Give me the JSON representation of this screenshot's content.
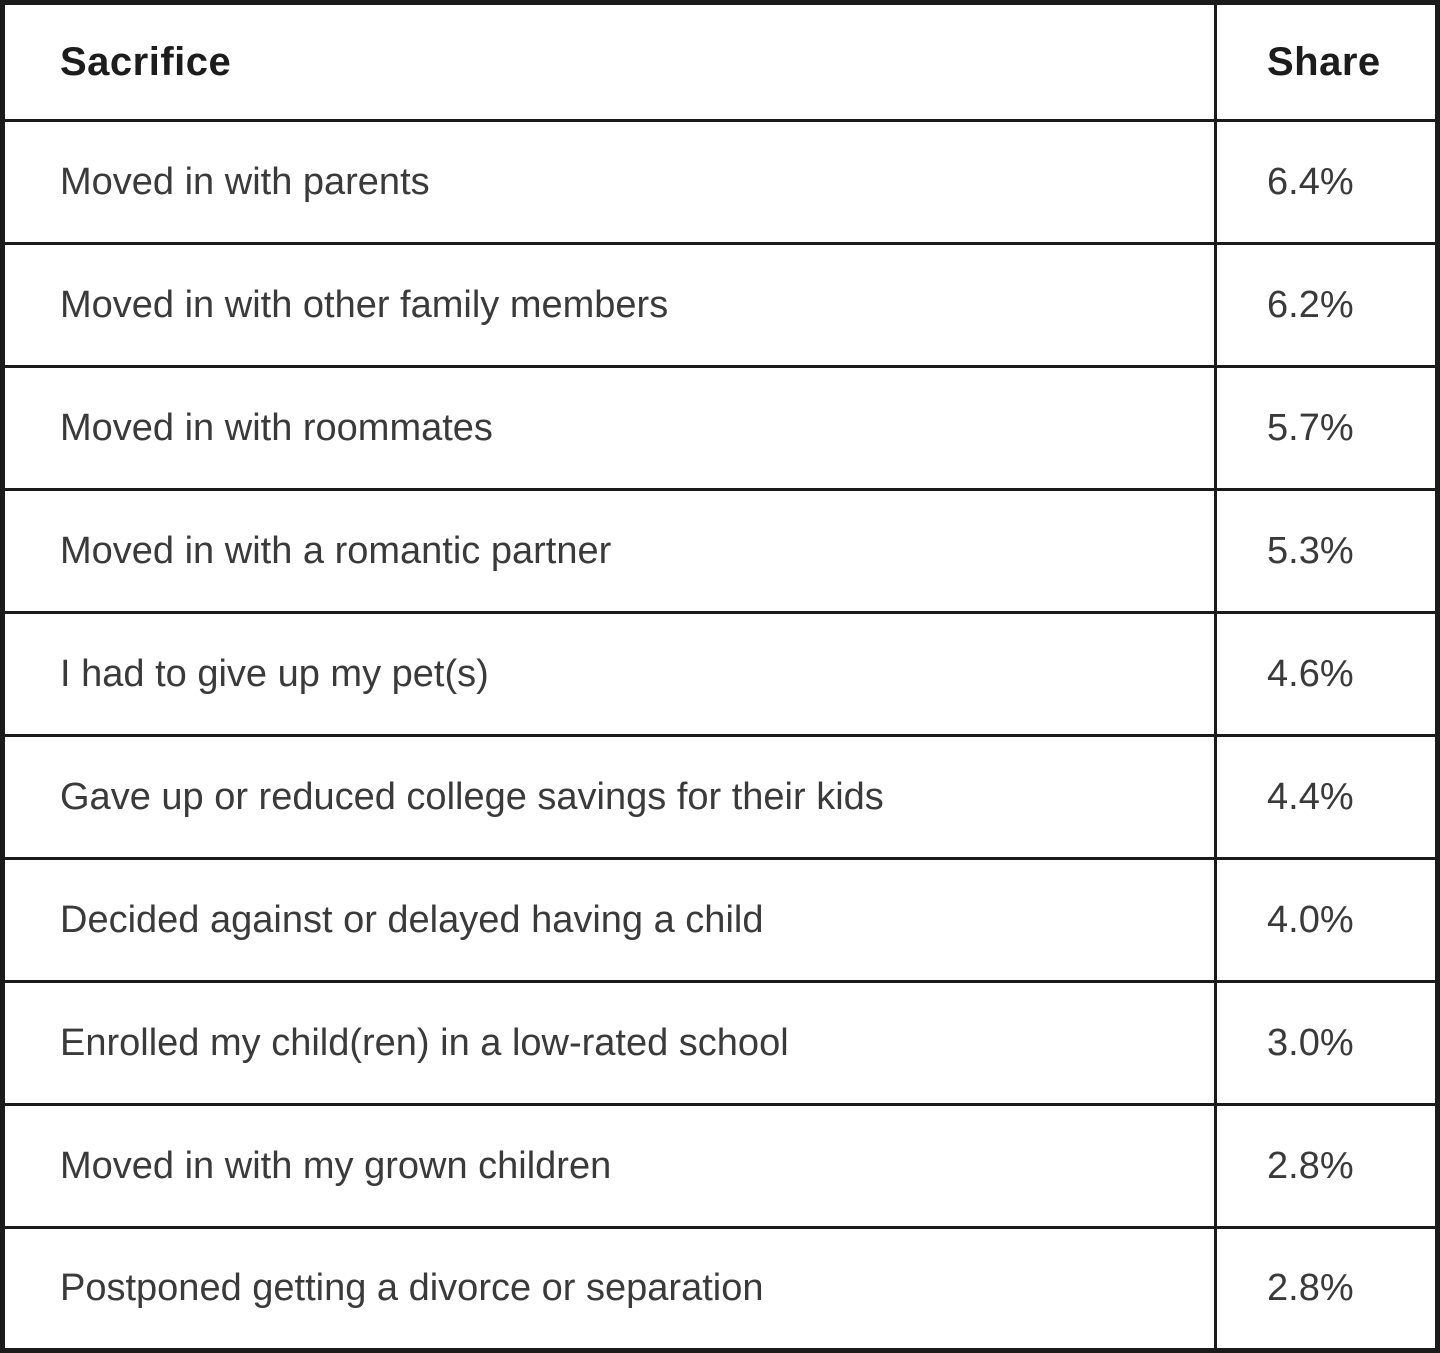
{
  "table": {
    "headers": {
      "sacrifice": "Sacrifice",
      "share": "Share"
    },
    "rows": [
      {
        "label": "Moved in with parents",
        "share": "6.4%"
      },
      {
        "label": "Moved in with other family members",
        "share": "6.2%"
      },
      {
        "label": "Moved in with roommates",
        "share": "5.7%"
      },
      {
        "label": "Moved in with a romantic partner",
        "share": "5.3%"
      },
      {
        "label": "I had to give up my pet(s)",
        "share": "4.6%"
      },
      {
        "label": "Gave up or reduced college savings for their kids",
        "share": "4.4%"
      },
      {
        "label": "Decided against or delayed having a child",
        "share": "4.0%"
      },
      {
        "label": "Enrolled my child(ren) in a low-rated school",
        "share": "3.0%"
      },
      {
        "label": "Moved in with my grown children",
        "share": "2.8%"
      },
      {
        "label": "Postponed getting a divorce or separation",
        "share": "2.8%"
      }
    ]
  },
  "chart_data": {
    "type": "table",
    "title": "",
    "columns": [
      "Sacrifice",
      "Share"
    ],
    "rows": [
      [
        "Moved in with parents",
        "6.4%"
      ],
      [
        "Moved in with other family members",
        "6.2%"
      ],
      [
        "Moved in with roommates",
        "5.7%"
      ],
      [
        "Moved in with a romantic partner",
        "5.3%"
      ],
      [
        "I had to give up my pet(s)",
        "4.6%"
      ],
      [
        "Gave up or reduced college savings for their kids",
        "4.4%"
      ],
      [
        "Decided against or delayed having a child",
        "4.0%"
      ],
      [
        "Enrolled my child(ren) in a low-rated school",
        "3.0%"
      ],
      [
        "Moved in with my grown children",
        "2.8%"
      ],
      [
        "Postponed getting a divorce or separation",
        "2.8%"
      ]
    ],
    "values_numeric": [
      6.4,
      6.2,
      5.7,
      5.3,
      4.6,
      4.4,
      4.0,
      3.0,
      2.8,
      2.8
    ],
    "value_unit": "%",
    "layout": {
      "grid": true,
      "border_color": "#1b1b1b",
      "background": "#ffffff",
      "text_align": "left"
    }
  },
  "colors": {
    "border": "#1b1b1b",
    "header_text": "#1c1c1c",
    "body_text": "#3a3a3a",
    "background": "#ffffff"
  }
}
